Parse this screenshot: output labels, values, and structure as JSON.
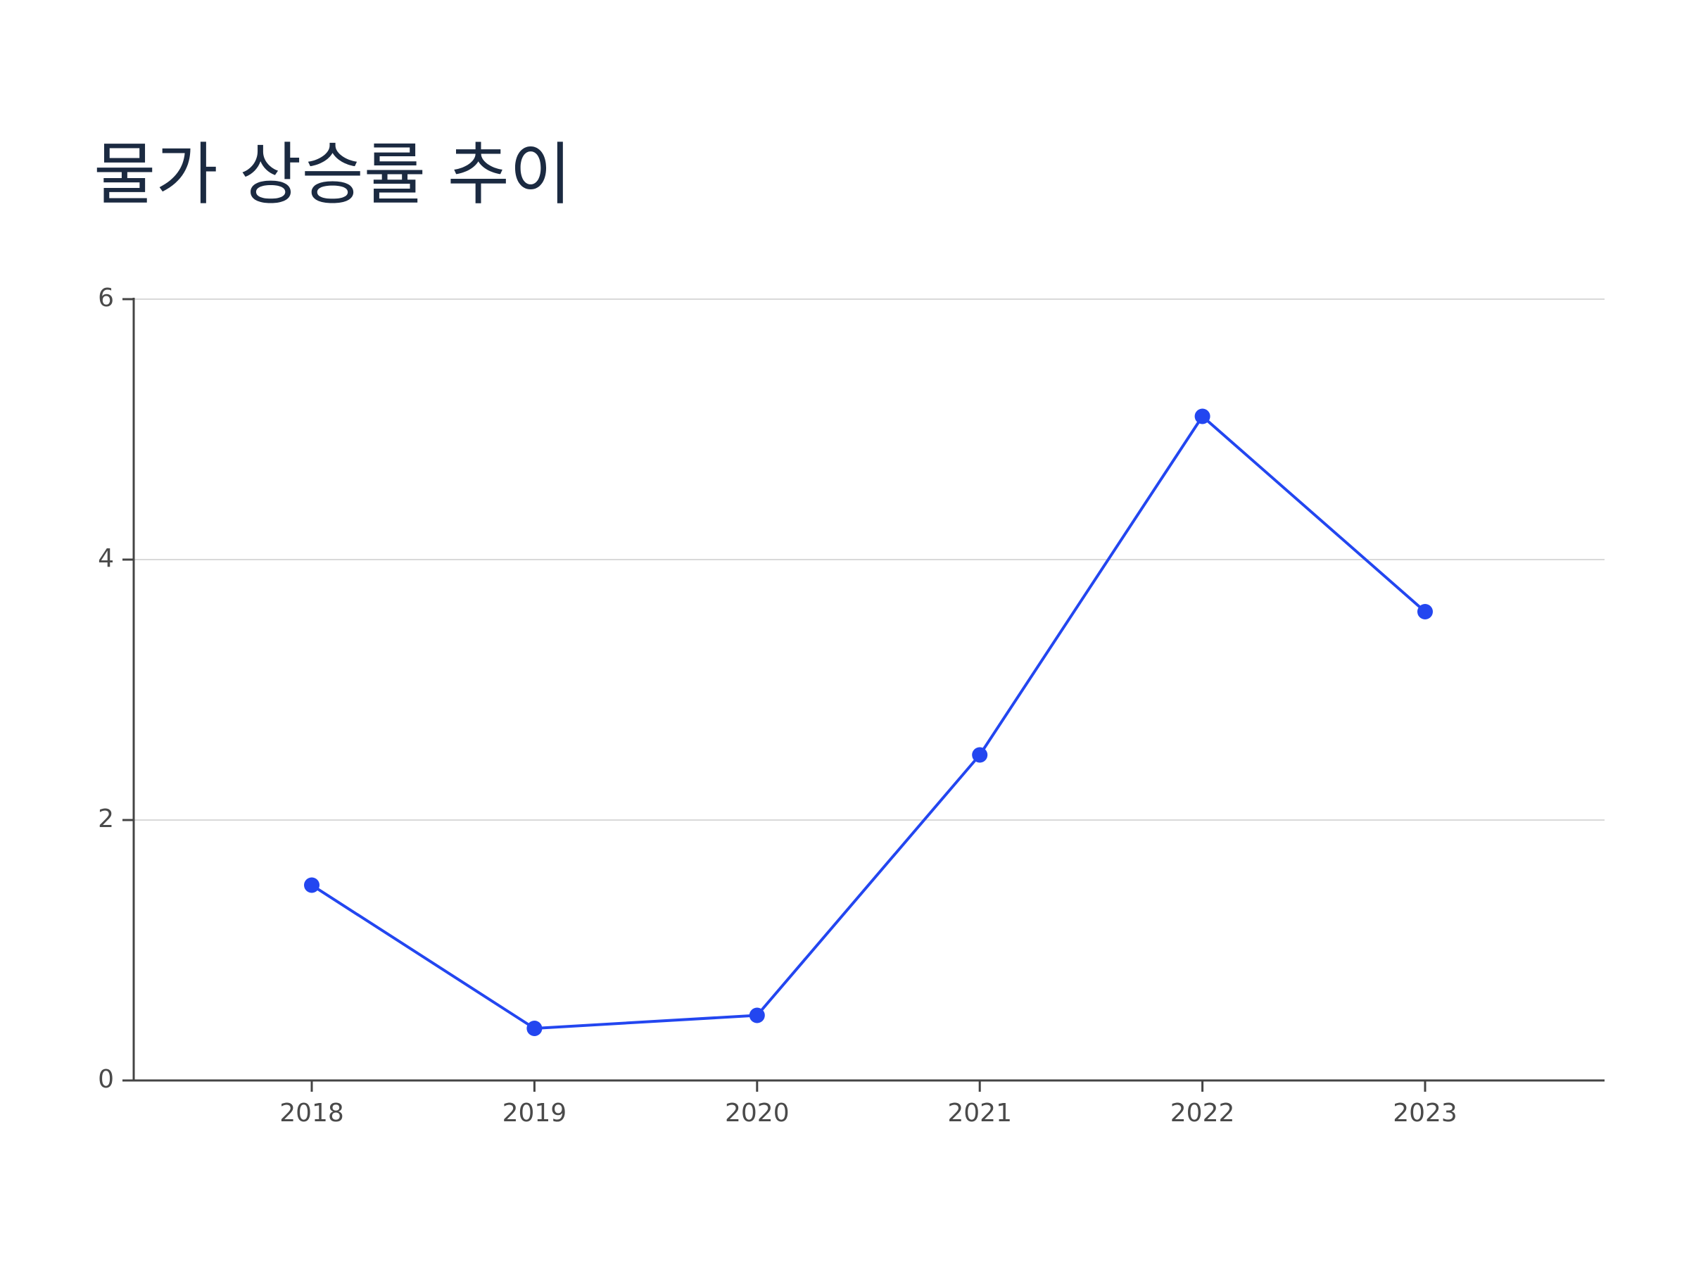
{
  "chart_data": {
    "type": "line",
    "title": "물가 상승률 추이",
    "xlabel": "",
    "ylabel": "",
    "categories": [
      "2018",
      "2019",
      "2020",
      "2021",
      "2022",
      "2023"
    ],
    "series": [
      {
        "values": [
          1.5,
          0.4,
          0.5,
          2.5,
          5.1,
          3.6
        ]
      }
    ],
    "ylim": [
      0,
      6
    ],
    "y_ticks": [
      0,
      2,
      4,
      6
    ],
    "grid": true,
    "line_color": "#2346f0",
    "grid_color": "#d9d9d9",
    "axis_color": "#444444"
  }
}
